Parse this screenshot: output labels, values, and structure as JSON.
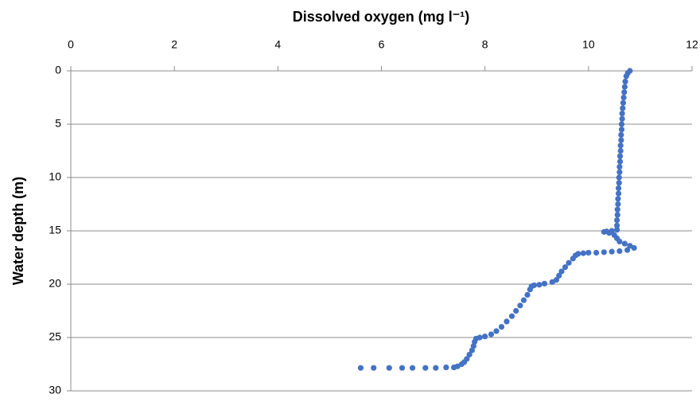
{
  "chart_data": {
    "type": "scatter",
    "title": "Dissolved oxygen (mg l⁻¹)",
    "y_label": "Water depth (m)",
    "color": "#4472c4",
    "xlim": [
      0,
      12
    ],
    "xticks": [
      0,
      2,
      4,
      6,
      8,
      10,
      12
    ],
    "ylim": [
      0,
      30
    ],
    "yticks": [
      0,
      5,
      10,
      15,
      20,
      25,
      30
    ],
    "y_inverted": true,
    "x_axis_position": "top",
    "grid": true,
    "x": [
      10.8,
      10.76,
      10.73,
      10.71,
      10.7,
      10.69,
      10.68,
      10.67,
      10.66,
      10.65,
      10.65,
      10.64,
      10.64,
      10.63,
      10.63,
      10.62,
      10.62,
      10.61,
      10.61,
      10.6,
      10.6,
      10.59,
      10.59,
      10.58,
      10.58,
      10.57,
      10.57,
      10.56,
      10.56,
      10.55,
      10.55,
      10.55,
      10.45,
      10.35,
      10.3,
      10.4,
      10.5,
      10.55,
      10.6,
      10.7,
      10.8,
      10.88,
      10.75,
      10.6,
      10.45,
      10.3,
      10.15,
      10.0,
      9.9,
      9.8,
      9.75,
      9.7,
      9.62,
      9.55,
      9.48,
      9.43,
      9.38,
      9.3,
      9.15,
      9.05,
      8.95,
      8.9,
      8.87,
      8.82,
      8.75,
      8.68,
      8.6,
      8.52,
      8.42,
      8.32,
      8.22,
      8.12,
      8.0,
      7.9,
      7.83,
      7.8,
      7.78,
      7.75,
      7.7,
      7.65,
      7.6,
      7.55,
      7.47,
      7.4,
      7.25,
      7.05,
      6.85,
      6.6,
      6.4,
      6.15,
      5.85,
      5.6
    ],
    "y": [
      0,
      0.2,
      0.5,
      1,
      1.5,
      2,
      2.5,
      3,
      3.5,
      4,
      4.5,
      5,
      5.5,
      6,
      6.5,
      7,
      7.5,
      8,
      8.5,
      9,
      9.5,
      10,
      10.5,
      11,
      11.5,
      12,
      12.5,
      13,
      13.5,
      14,
      14.5,
      14.9,
      15.0,
      15.05,
      15.1,
      15.2,
      15.4,
      15.7,
      16.0,
      16.2,
      16.4,
      16.6,
      16.8,
      16.9,
      16.95,
      17.0,
      17.05,
      17.05,
      17.1,
      17.15,
      17.3,
      17.6,
      18.0,
      18.4,
      18.8,
      19.2,
      19.6,
      19.8,
      19.95,
      20.05,
      20.1,
      20.2,
      20.5,
      21.0,
      21.5,
      22.0,
      22.5,
      23.0,
      23.5,
      24.0,
      24.4,
      24.7,
      24.9,
      25.0,
      25.1,
      25.4,
      25.8,
      26.2,
      26.6,
      27.0,
      27.3,
      27.5,
      27.7,
      27.8,
      27.8,
      27.85,
      27.85,
      27.85,
      27.85,
      27.85,
      27.85,
      27.85
    ]
  }
}
